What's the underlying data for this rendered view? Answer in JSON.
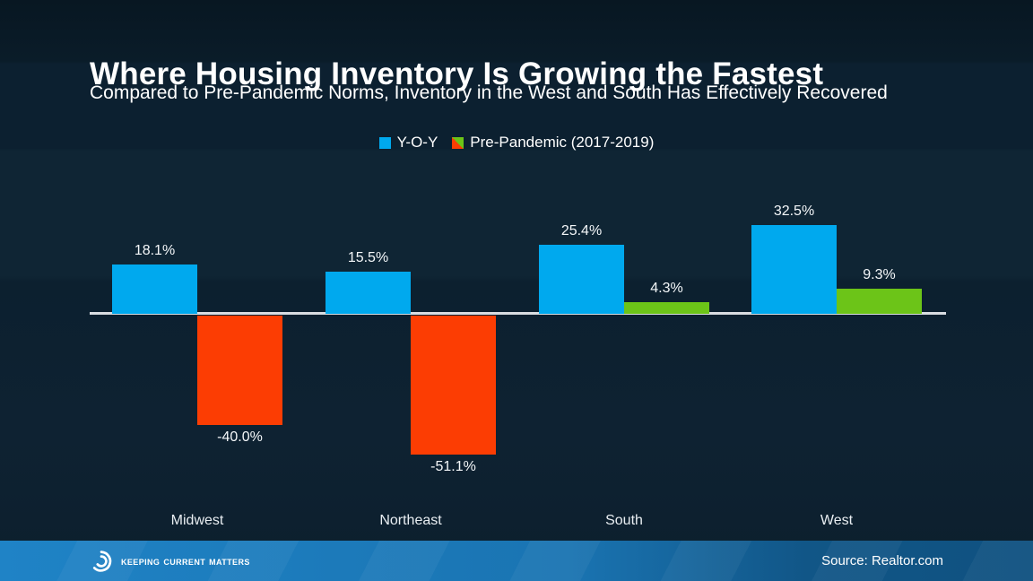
{
  "page": {
    "title": "Where Housing Inventory Is Growing the Fastest",
    "subtitle": "Compared to Pre-Pandemic Norms, Inventory in the West and South Has Effectively Recovered"
  },
  "chart_data": {
    "type": "bar",
    "title": "Where Housing Inventory Is Growing the Fastest",
    "subtitle": "Compared to Pre-Pandemic Norms, Inventory in the West and South Has Effectively Recovered",
    "categories": [
      "Midwest",
      "Northeast",
      "South",
      "West"
    ],
    "series": [
      {
        "name": "Y-O-Y",
        "values": [
          18.1,
          15.5,
          25.4,
          32.5
        ],
        "labels": [
          "18.1%",
          "15.5%",
          "25.4%",
          "32.5%"
        ]
      },
      {
        "name": "Pre-Pandemic (2017-2019)",
        "values": [
          -40.0,
          -51.1,
          4.3,
          9.3
        ],
        "labels": [
          "-40.0%",
          "-51.1%",
          "4.3%",
          "9.3%"
        ]
      }
    ],
    "legend": [
      {
        "label": "Y-O-Y",
        "color": "#00a9ee"
      },
      {
        "label": "Pre-Pandemic (2017-2019)",
        "colors": [
          "#6cc418",
          "#fc3d03"
        ]
      }
    ],
    "colors": {
      "yoy": "#00a9ee",
      "positive": "#6cc418",
      "negative": "#fc3d03",
      "axis_line": "#d9dde2"
    },
    "value_suffix": "%",
    "ylim": [
      -55,
      35
    ],
    "baseline": 0,
    "grid": false,
    "legend_position": "top"
  },
  "footer": {
    "brand": "Keeping Current Matters",
    "source": "Source: Realtor.com"
  },
  "theme": {
    "background_top": "#081722",
    "background_bottom": "#0c1f2d",
    "footer_left": "#1f83c6",
    "footer_right": "#0f5180",
    "text": "#ffffff"
  }
}
